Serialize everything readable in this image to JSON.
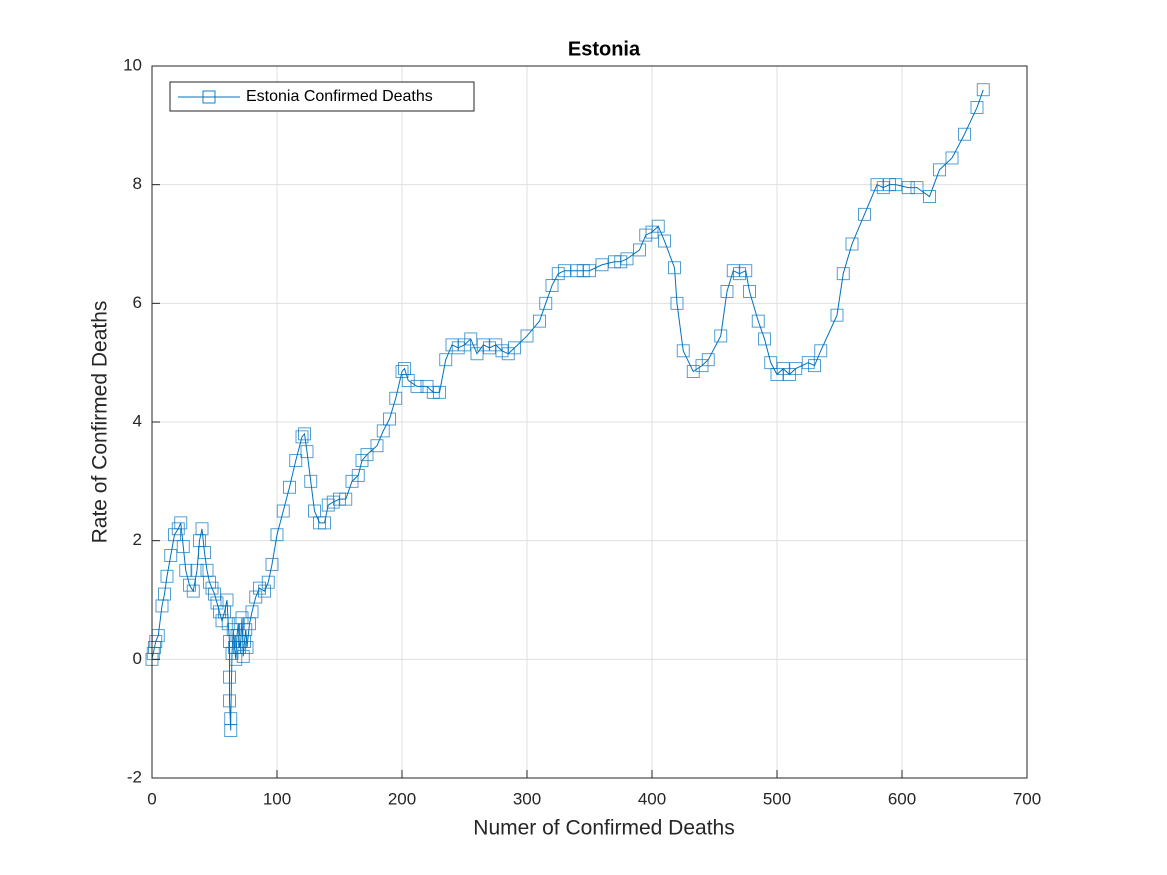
{
  "chart_data": {
    "type": "line",
    "title": "Estonia",
    "x_label": "Numer of Confirmed Deaths",
    "y_label": "Rate of Confirmed Deaths",
    "xlim": [
      0,
      700
    ],
    "xticks": [
      0,
      100,
      200,
      300,
      400,
      500,
      600,
      700
    ],
    "ylim": [
      -2,
      10
    ],
    "yticks": [
      -2,
      0,
      2,
      4,
      6,
      8,
      10
    ],
    "grid": true,
    "legend": "upper left",
    "series": [
      {
        "name": "Estonia Confirmed Deaths",
        "color": "#0072bd",
        "marker": "square",
        "x": [
          0,
          1,
          2,
          3,
          5,
          8,
          10,
          12,
          15,
          18,
          21,
          23,
          25,
          27,
          30,
          33,
          36,
          38,
          40,
          42,
          44,
          46,
          48,
          50,
          52,
          54,
          56,
          58,
          60,
          61,
          62,
          62,
          62,
          63,
          63,
          64,
          65,
          66,
          67,
          68,
          69,
          70,
          71,
          72,
          73,
          74,
          75,
          76,
          78,
          80,
          83,
          86,
          90,
          93,
          96,
          100,
          105,
          110,
          115,
          120,
          122,
          124,
          127,
          130,
          134,
          138,
          141,
          145,
          150,
          155,
          160,
          165,
          168,
          172,
          180,
          185,
          190,
          195,
          200,
          202,
          205,
          212,
          220,
          225,
          230,
          235,
          240,
          245,
          250,
          255,
          260,
          265,
          270,
          275,
          280,
          285,
          290,
          300,
          310,
          315,
          320,
          325,
          330,
          340,
          345,
          350,
          360,
          370,
          375,
          380,
          390,
          395,
          400,
          405,
          410,
          418,
          420,
          425,
          433,
          440,
          445,
          455,
          460,
          465,
          470,
          475,
          478,
          485,
          490,
          495,
          500,
          505,
          510,
          515,
          525,
          530,
          535,
          548,
          553,
          560,
          570,
          580,
          585,
          590,
          595,
          605,
          612,
          622,
          630,
          640,
          650,
          660,
          665
        ],
        "values": [
          0,
          0.1,
          0.2,
          0.3,
          0.4,
          0.9,
          1.1,
          1.4,
          1.75,
          2.1,
          2.2,
          2.3,
          1.9,
          1.5,
          1.25,
          1.15,
          1.5,
          2.0,
          2.2,
          1.8,
          1.5,
          1.3,
          1.2,
          1.1,
          0.95,
          0.8,
          0.65,
          0.8,
          1.0,
          0.6,
          0.3,
          -0.3,
          -0.7,
          -1.2,
          -1.0,
          0.1,
          0.5,
          0.2,
          0.0,
          0.4,
          0.6,
          0.2,
          0.3,
          0.7,
          0.05,
          0.3,
          0.5,
          0.2,
          0.6,
          0.8,
          1.05,
          1.2,
          1.15,
          1.3,
          1.6,
          2.1,
          2.5,
          2.9,
          3.35,
          3.75,
          3.8,
          3.5,
          3.0,
          2.5,
          2.3,
          2.3,
          2.6,
          2.65,
          2.7,
          2.7,
          3.0,
          3.1,
          3.35,
          3.45,
          3.6,
          3.85,
          4.05,
          4.4,
          4.85,
          4.9,
          4.7,
          4.6,
          4.6,
          4.5,
          4.5,
          5.05,
          5.3,
          5.25,
          5.3,
          5.4,
          5.15,
          5.3,
          5.25,
          5.3,
          5.2,
          5.15,
          5.25,
          5.45,
          5.7,
          6.0,
          6.3,
          6.5,
          6.55,
          6.55,
          6.55,
          6.55,
          6.65,
          6.7,
          6.7,
          6.75,
          6.9,
          7.15,
          7.2,
          7.3,
          7.05,
          6.6,
          6.0,
          5.2,
          4.85,
          4.95,
          5.05,
          5.45,
          6.2,
          6.55,
          6.5,
          6.55,
          6.2,
          5.7,
          5.4,
          5.0,
          4.8,
          4.9,
          4.8,
          4.9,
          5.0,
          4.95,
          5.2,
          5.8,
          6.5,
          7.0,
          7.5,
          8.0,
          7.95,
          8.0,
          8.0,
          7.95,
          7.95,
          7.8,
          8.25,
          8.45,
          8.85,
          9.3,
          9.6
        ]
      }
    ]
  }
}
